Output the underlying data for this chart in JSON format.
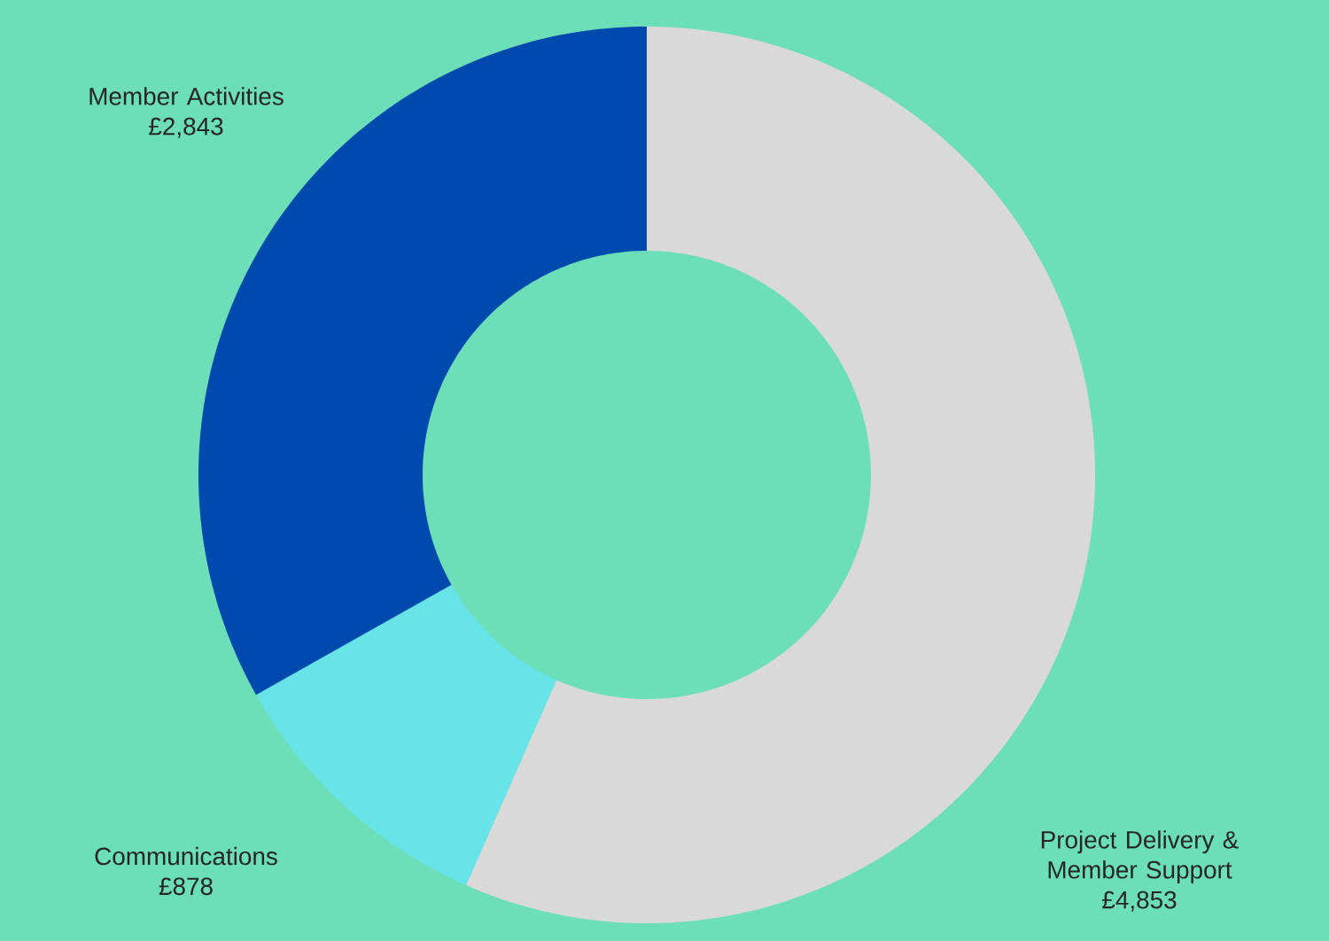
{
  "chart_data": {
    "type": "donut",
    "categories": [
      "Project Delivery & Member Support",
      "Communications",
      "Member Activities"
    ],
    "values": [
      4853,
      878,
      2843
    ],
    "value_labels": [
      "£4,853",
      "£878",
      "£2,843"
    ],
    "colors": [
      "#d9d9d9",
      "#67e4e8",
      "#004aad"
    ]
  }
}
